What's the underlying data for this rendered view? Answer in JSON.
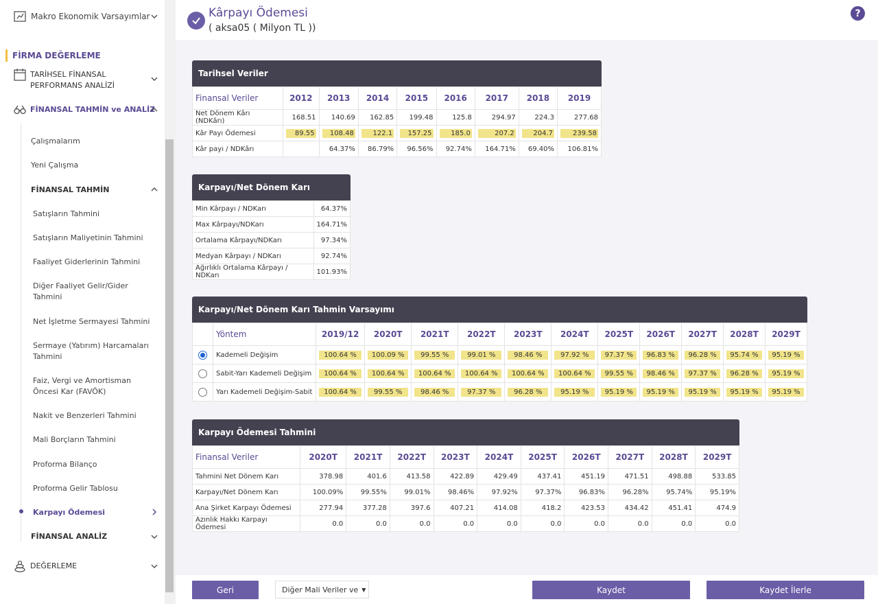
{
  "sidebar": {
    "macro": "Makro Ekonomik Varsayımlar",
    "section": "FİRMA DEĞERLEME",
    "hist1": "TARİHSEL FİNANSAL",
    "hist2": "PERFORMANS ANALİZİ",
    "forecast": "FİNANSAL TAHMİN ve ANALİZ",
    "calismalarim": "Çalışmalarım",
    "yeni": "Yeni Çalışma",
    "fin_tahmin": "FİNANSAL TAHMİN",
    "items": [
      "Satışların Tahmini",
      "Satışların Maliyetinin Tahmini",
      "Faaliyet Giderlerinin Tahmini",
      "Diğer Faaliyet Gelir/Gider",
      "Tahmini",
      "Net İşletme Sermayesi Tahmini",
      "Sermaye (Yatırım) Harcamaları",
      "Tahmini",
      "Faiz, Vergi ve Amortisman",
      "Öncesi Kar (FAVÖK)",
      "Nakit ve Benzerleri Tahmini",
      "Mali Borçların Tahmini",
      "Proforma Bilanço",
      "Proforma Gelir Tablosu",
      "Karpayı Ödemesi"
    ],
    "fin_analiz": "FİNANSAL ANALİZ",
    "degerleme": "DEĞERLEME"
  },
  "header": {
    "title": "Kârpayı Ödemesi",
    "subtitle": "( aksa05 ( Milyon TL ))",
    "help": "?"
  },
  "t1": {
    "title": "Tarihsel Veriler",
    "col0": "Finansal Veriler",
    "years": [
      "2012",
      "2013",
      "2014",
      "2015",
      "2016",
      "2017",
      "2018",
      "2019"
    ],
    "rows": [
      {
        "label": "Net Dönem Kârı (NDKârı)",
        "v": [
          "168.51",
          "140.69",
          "162.85",
          "199.48",
          "125.8",
          "294.97",
          "224.3",
          "277.68"
        ]
      },
      {
        "label": "Kâr Payı Ödemesi",
        "v": [
          "89.55",
          "108.48",
          "122.1",
          "157.25",
          "185.0",
          "207.2",
          "204.7",
          "239.58"
        ]
      },
      {
        "label": "Kâr payı / NDKârı",
        "v": [
          "",
          "64.37%",
          "86.79%",
          "96.56%",
          "92.74%",
          "164.71%",
          "69.40%",
          "106.81%"
        ]
      }
    ]
  },
  "t2": {
    "title": "Karpayı/Net Dönem Karı İstatistikleri",
    "rows": [
      {
        "label": "Min Kârpayı / NDKarı",
        "v": "64.37%"
      },
      {
        "label": "Max Kârpayı/NDKarı",
        "v": "164.71%"
      },
      {
        "label": "Ortalama Kârpayı/NDKarı",
        "v": "97.34%"
      },
      {
        "label": "Medyan Kârpayı / NDKarı",
        "v": "92.74%"
      },
      {
        "label": "Ağırlıklı Ortalama Kârpayı / NDKarı",
        "v": "101.93%"
      }
    ]
  },
  "t3": {
    "title": "Karpayı/Net Dönem Karı Tahmin Varsayımı",
    "col0": "Yöntem",
    "years": [
      "2019/12",
      "2020T",
      "2021T",
      "2022T",
      "2023T",
      "2024T",
      "2025T",
      "2026T",
      "2027T",
      "2028T",
      "2029T"
    ],
    "rows": [
      {
        "label": "Kademeli Değişim",
        "v": [
          "100.64 %",
          "100.09 %",
          "99.55 %",
          "99.01 %",
          "98.46 %",
          "97.92 %",
          "97.37 %",
          "96.83 %",
          "96.28 %",
          "95.74 %",
          "95.19 %"
        ]
      },
      {
        "label": "Sabit-Yarı Kademeli Değişim",
        "v": [
          "100.64 %",
          "100.64 %",
          "100.64 %",
          "100.64 %",
          "100.64 %",
          "100.64 %",
          "99.55 %",
          "98.46 %",
          "97.37 %",
          "96.28 %",
          "95.19 %"
        ]
      },
      {
        "label": "Yarı Kademeli Değişim-Sabit",
        "v": [
          "100.64 %",
          "99.55 %",
          "98.46 %",
          "97.37 %",
          "96.28 %",
          "95.19 %",
          "95.19 %",
          "95.19 %",
          "95.19 %",
          "95.19 %",
          "95.19 %"
        ]
      }
    ]
  },
  "t4": {
    "title": "Karpayı Ödemesi Tahmini",
    "col0": "Finansal Veriler",
    "years": [
      "2020T",
      "2021T",
      "2022T",
      "2023T",
      "2024T",
      "2025T",
      "2026T",
      "2027T",
      "2028T",
      "2029T"
    ],
    "rows": [
      {
        "label": "Tahmini Net Dönem Karı",
        "v": [
          "378.98",
          "401.6",
          "413.58",
          "422.89",
          "429.49",
          "437.41",
          "451.19",
          "471.51",
          "498.88",
          "533.85"
        ]
      },
      {
        "label": "Karpayı/Net Dönem Karı",
        "v": [
          "100.09%",
          "99.55%",
          "99.01%",
          "98.46%",
          "97.92%",
          "97.37%",
          "96.83%",
          "96.28%",
          "95.74%",
          "95.19%"
        ]
      },
      {
        "label": "Ana Şirket Karpayı Ödemesi",
        "v": [
          "277.94",
          "377.28",
          "397.6",
          "407.21",
          "414.08",
          "418.2",
          "423.53",
          "434.42",
          "451.41",
          "474.9"
        ]
      },
      {
        "label": "Azınlık Hakkı Karpayı Ödemesi",
        "v": [
          "0.0",
          "0.0",
          "0.0",
          "0.0",
          "0.0",
          "0.0",
          "0.0",
          "0.0",
          "0.0",
          "0.0"
        ]
      }
    ]
  },
  "footer": {
    "back": "Geri",
    "dropdown": "Diğer Mali Veriler ve",
    "save": "Kaydet",
    "save_next": "Kaydet İlerle"
  },
  "colors": {
    "accent": "#5b4a94",
    "button": "#6b5ea6",
    "highlight": "#f1e48a",
    "header_dark": "#444150"
  }
}
